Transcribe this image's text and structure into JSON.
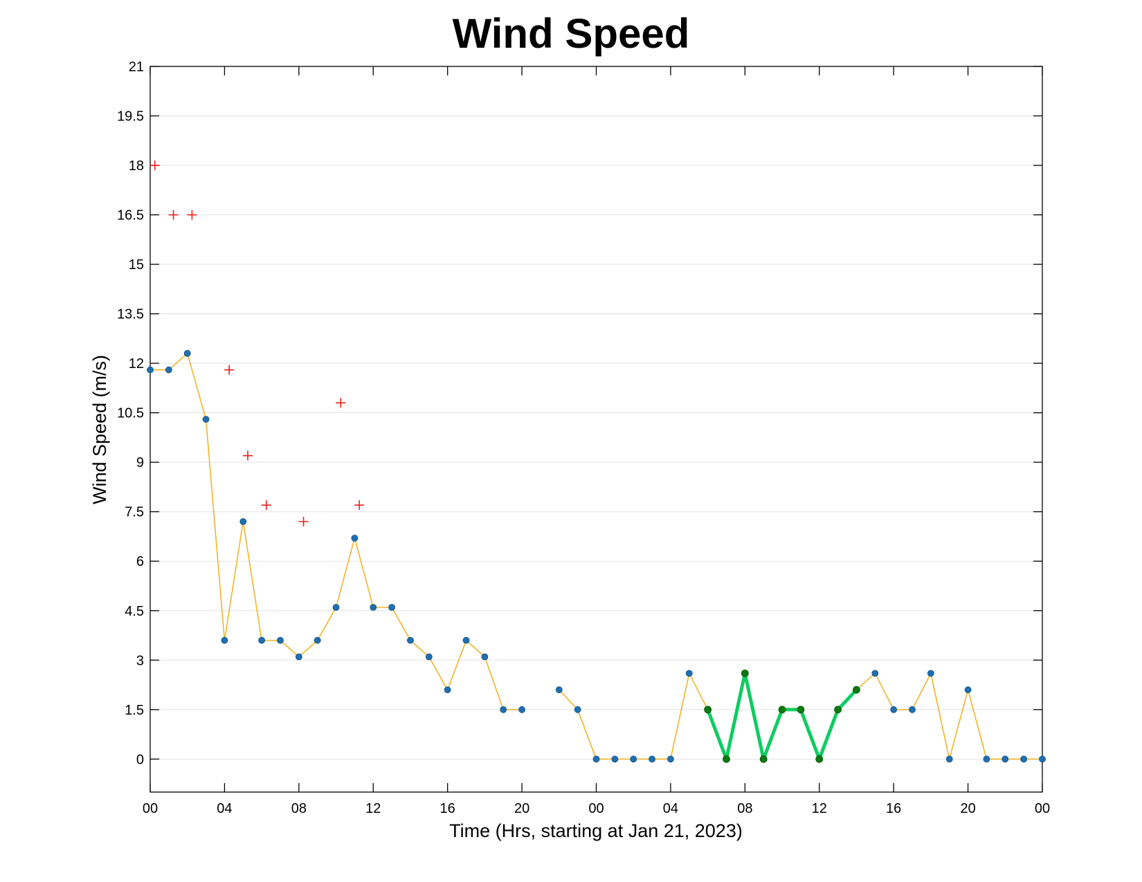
{
  "chart_data": {
    "type": "line",
    "title": "Wind Speed",
    "xlabel": "Time (Hrs, starting at Jan 21, 2023)",
    "ylabel": "Wind Speed (m/s)",
    "ylim": [
      -1,
      21
    ],
    "xlim": [
      "2023-01-21 00:00",
      "2023-01-23 00:00"
    ],
    "grid": "horizontal",
    "yticks": [
      "0",
      "1.5",
      "3",
      "4.5",
      "6",
      "7.5",
      "9",
      "10.5",
      "12",
      "13.5",
      "15",
      "16.5",
      "18",
      "19.5",
      "21"
    ],
    "xticks": [
      {
        "t": "2023-01-21 00:00",
        "label": "00"
      },
      {
        "t": "2023-01-21 04:00",
        "label": "04"
      },
      {
        "t": "2023-01-21 08:00",
        "label": "08"
      },
      {
        "t": "2023-01-21 12:00",
        "label": "12"
      },
      {
        "t": "2023-01-21 16:00",
        "label": "16"
      },
      {
        "t": "2023-01-21 20:00",
        "label": "20"
      },
      {
        "t": "2023-01-22 00:00",
        "label": "00"
      },
      {
        "t": "2023-01-22 04:00",
        "label": "04"
      },
      {
        "t": "2023-01-22 08:00",
        "label": "08"
      },
      {
        "t": "2023-01-22 12:00",
        "label": "12"
      },
      {
        "t": "2023-01-22 16:00",
        "label": "16"
      },
      {
        "t": "2023-01-22 20:00",
        "label": "20"
      },
      {
        "t": "2023-01-23 00:00",
        "label": "00"
      }
    ],
    "series": [
      {
        "style": "line-with-markers",
        "line_color": "#f0b429",
        "marker_color": "#1f6fb2",
        "segments": [
          {
            "points": [
              {
                "t": "2023-01-21 00:00",
                "y": 11.8
              },
              {
                "t": "2023-01-21 01:00",
                "y": 11.8
              },
              {
                "t": "2023-01-21 02:00",
                "y": 12.3
              },
              {
                "t": "2023-01-21 03:00",
                "y": 10.3
              },
              {
                "t": "2023-01-21 04:00",
                "y": 3.6
              },
              {
                "t": "2023-01-21 05:00",
                "y": 7.2
              },
              {
                "t": "2023-01-21 06:00",
                "y": 3.6
              },
              {
                "t": "2023-01-21 07:00",
                "y": 3.6
              },
              {
                "t": "2023-01-21 08:00",
                "y": 3.1
              },
              {
                "t": "2023-01-21 09:00",
                "y": 3.6
              },
              {
                "t": "2023-01-21 10:00",
                "y": 4.6
              },
              {
                "t": "2023-01-21 11:00",
                "y": 6.7
              },
              {
                "t": "2023-01-21 12:00",
                "y": 4.6
              },
              {
                "t": "2023-01-21 13:00",
                "y": 4.6
              },
              {
                "t": "2023-01-21 14:00",
                "y": 3.6
              },
              {
                "t": "2023-01-21 15:00",
                "y": 3.1
              },
              {
                "t": "2023-01-21 16:00",
                "y": 2.1
              },
              {
                "t": "2023-01-21 17:00",
                "y": 3.6
              },
              {
                "t": "2023-01-21 18:00",
                "y": 3.1
              },
              {
                "t": "2023-01-21 19:00",
                "y": 1.5
              },
              {
                "t": "2023-01-21 20:00",
                "y": 1.5
              }
            ]
          },
          {
            "points": [
              {
                "t": "2023-01-21 22:00",
                "y": 2.1
              },
              {
                "t": "2023-01-21 23:00",
                "y": 1.5
              },
              {
                "t": "2023-01-22 00:00",
                "y": 0
              },
              {
                "t": "2023-01-22 01:00",
                "y": 0
              },
              {
                "t": "2023-01-22 02:00",
                "y": 0
              },
              {
                "t": "2023-01-22 03:00",
                "y": 0
              },
              {
                "t": "2023-01-22 04:00",
                "y": 0
              },
              {
                "t": "2023-01-22 05:00",
                "y": 2.6
              },
              {
                "t": "2023-01-22 06:00",
                "y": 1.5
              },
              {
                "t": "2023-01-22 07:00",
                "y": 0
              },
              {
                "t": "2023-01-22 08:00",
                "y": 2.6
              },
              {
                "t": "2023-01-22 09:00",
                "y": 0
              },
              {
                "t": "2023-01-22 10:00",
                "y": 1.5
              },
              {
                "t": "2023-01-22 11:00",
                "y": 1.5
              },
              {
                "t": "2023-01-22 12:00",
                "y": 0
              },
              {
                "t": "2023-01-22 13:00",
                "y": 1.5
              },
              {
                "t": "2023-01-22 14:00",
                "y": 2.1
              },
              {
                "t": "2023-01-22 15:00",
                "y": 2.6
              },
              {
                "t": "2023-01-22 16:00",
                "y": 1.5
              },
              {
                "t": "2023-01-22 17:00",
                "y": 1.5
              },
              {
                "t": "2023-01-22 18:00",
                "y": 2.6
              },
              {
                "t": "2023-01-22 19:00",
                "y": 0
              },
              {
                "t": "2023-01-22 20:00",
                "y": 2.1
              },
              {
                "t": "2023-01-22 21:00",
                "y": 0
              },
              {
                "t": "2023-01-22 22:00",
                "y": 0
              },
              {
                "t": "2023-01-22 23:00",
                "y": 0
              },
              {
                "t": "2023-01-23 00:00",
                "y": 0
              }
            ]
          }
        ]
      },
      {
        "style": "highlighted-line",
        "line_color": "#0fcc62",
        "marker_color": "#0a7a10",
        "points": [
          {
            "t": "2023-01-22 06:00",
            "y": 1.5
          },
          {
            "t": "2023-01-22 07:00",
            "y": 0
          },
          {
            "t": "2023-01-22 08:00",
            "y": 2.6
          },
          {
            "t": "2023-01-22 09:00",
            "y": 0
          },
          {
            "t": "2023-01-22 10:00",
            "y": 1.5
          },
          {
            "t": "2023-01-22 11:00",
            "y": 1.5
          },
          {
            "t": "2023-01-22 12:00",
            "y": 0
          },
          {
            "t": "2023-01-22 13:00",
            "y": 1.5
          },
          {
            "t": "2023-01-22 14:00",
            "y": 2.1
          }
        ]
      },
      {
        "style": "plus-markers",
        "marker_color": "#e8201e",
        "points": [
          {
            "t": "2023-01-21 00:15",
            "y": 18
          },
          {
            "t": "2023-01-21 01:15",
            "y": 16.5
          },
          {
            "t": "2023-01-21 02:15",
            "y": 16.5
          },
          {
            "t": "2023-01-21 04:15",
            "y": 11.8
          },
          {
            "t": "2023-01-21 05:15",
            "y": 9.2
          },
          {
            "t": "2023-01-21 06:15",
            "y": 7.7
          },
          {
            "t": "2023-01-21 08:15",
            "y": 7.2
          },
          {
            "t": "2023-01-21 10:15",
            "y": 10.8
          },
          {
            "t": "2023-01-21 11:15",
            "y": 7.7
          }
        ]
      }
    ]
  }
}
